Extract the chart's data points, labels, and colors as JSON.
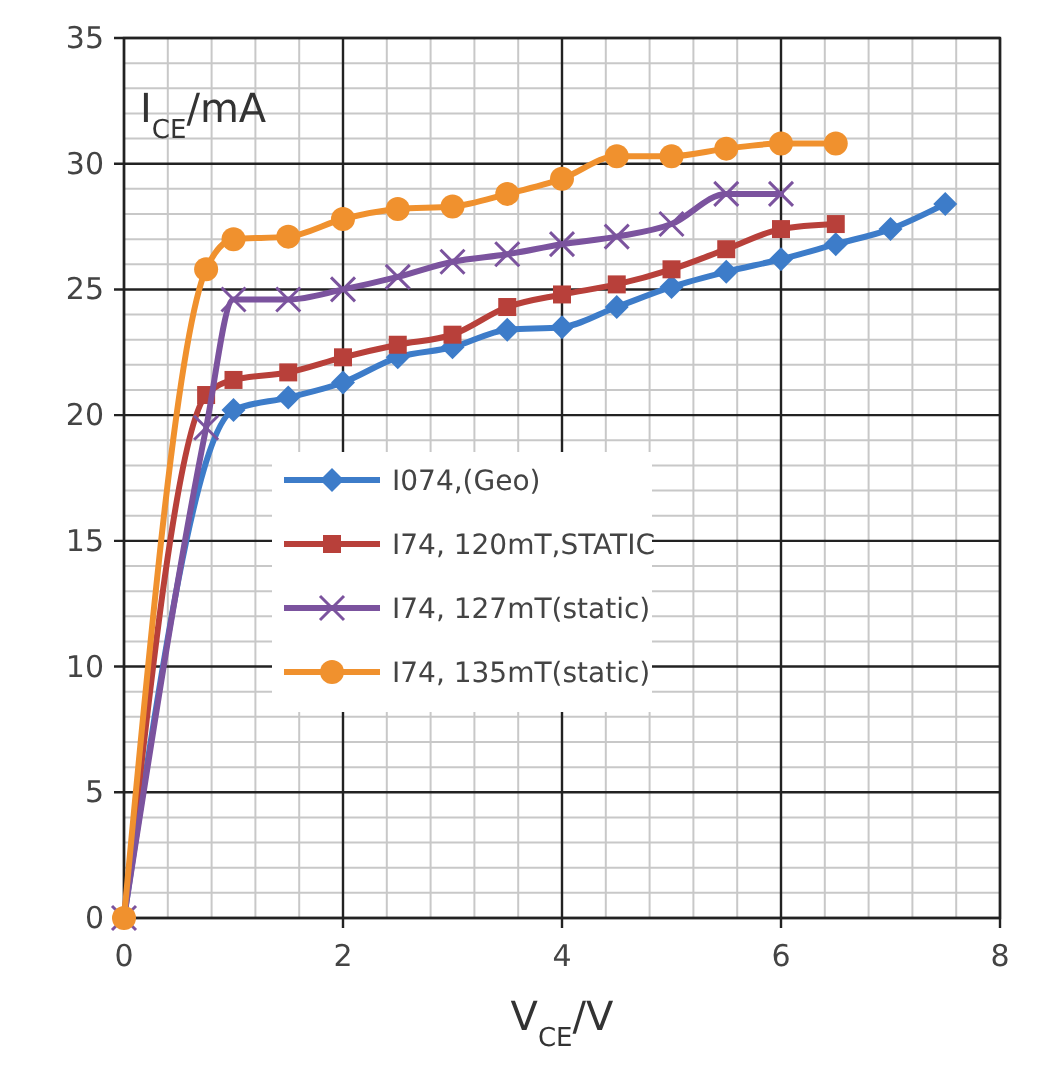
{
  "chart_data": {
    "type": "line",
    "xlabel": "V$_{CE}$/V",
    "ylabel": "I$_{CE}$/mA",
    "xlim": [
      0,
      8
    ],
    "ylim": [
      0,
      35
    ],
    "xticks": [
      0,
      2,
      4,
      6,
      8
    ],
    "yticks": [
      0,
      5,
      10,
      15,
      20,
      25,
      30,
      35
    ],
    "grid": true,
    "legend": "left",
    "line_style": "solid",
    "series": [
      {
        "name": "I074,(Geo)",
        "color": "#3d7cc9",
        "marker": "diamond",
        "x": [
          0,
          1,
          1.5,
          2,
          2.5,
          3,
          3.5,
          4,
          4.5,
          5,
          5.5,
          6,
          6.5,
          7,
          7.5
        ],
        "values": [
          0,
          20.2,
          20.7,
          21.3,
          22.3,
          22.7,
          23.4,
          23.5,
          24.3,
          25.1,
          25.7,
          26.2,
          26.8,
          27.4,
          28.4
        ]
      },
      {
        "name": "I74, 120mT,STATIC",
        "color": "#b8403a",
        "marker": "square",
        "x": [
          0,
          0.75,
          1,
          1.5,
          2,
          2.5,
          3,
          3.5,
          4,
          4.5,
          5,
          5.5,
          6,
          6.5
        ],
        "values": [
          0,
          20.8,
          21.4,
          21.7,
          22.3,
          22.8,
          23.2,
          24.3,
          24.8,
          25.2,
          25.8,
          26.6,
          27.4,
          27.6
        ]
      },
      {
        "name": "I74, 127mT(static)",
        "color": "#7b539e",
        "marker": "cross",
        "x": [
          0,
          0.75,
          1,
          1.5,
          2,
          2.5,
          3,
          3.5,
          4,
          4.5,
          5,
          5.5,
          6
        ],
        "values": [
          0,
          19.5,
          24.6,
          24.6,
          25,
          25.5,
          26.1,
          26.4,
          26.8,
          27.1,
          27.6,
          28.8,
          28.8
        ]
      },
      {
        "name": "I74, 135mT(static)",
        "color": "#f0912e",
        "marker": "circle",
        "x": [
          0,
          0.75,
          1,
          1.5,
          2,
          2.5,
          3,
          3.5,
          4,
          4.5,
          5,
          5.5,
          6,
          6.5
        ],
        "values": [
          0,
          25.8,
          27,
          27.1,
          27.8,
          28.2,
          28.3,
          28.8,
          29.4,
          30.3,
          30.3,
          30.6,
          30.8,
          30.8
        ]
      }
    ]
  }
}
